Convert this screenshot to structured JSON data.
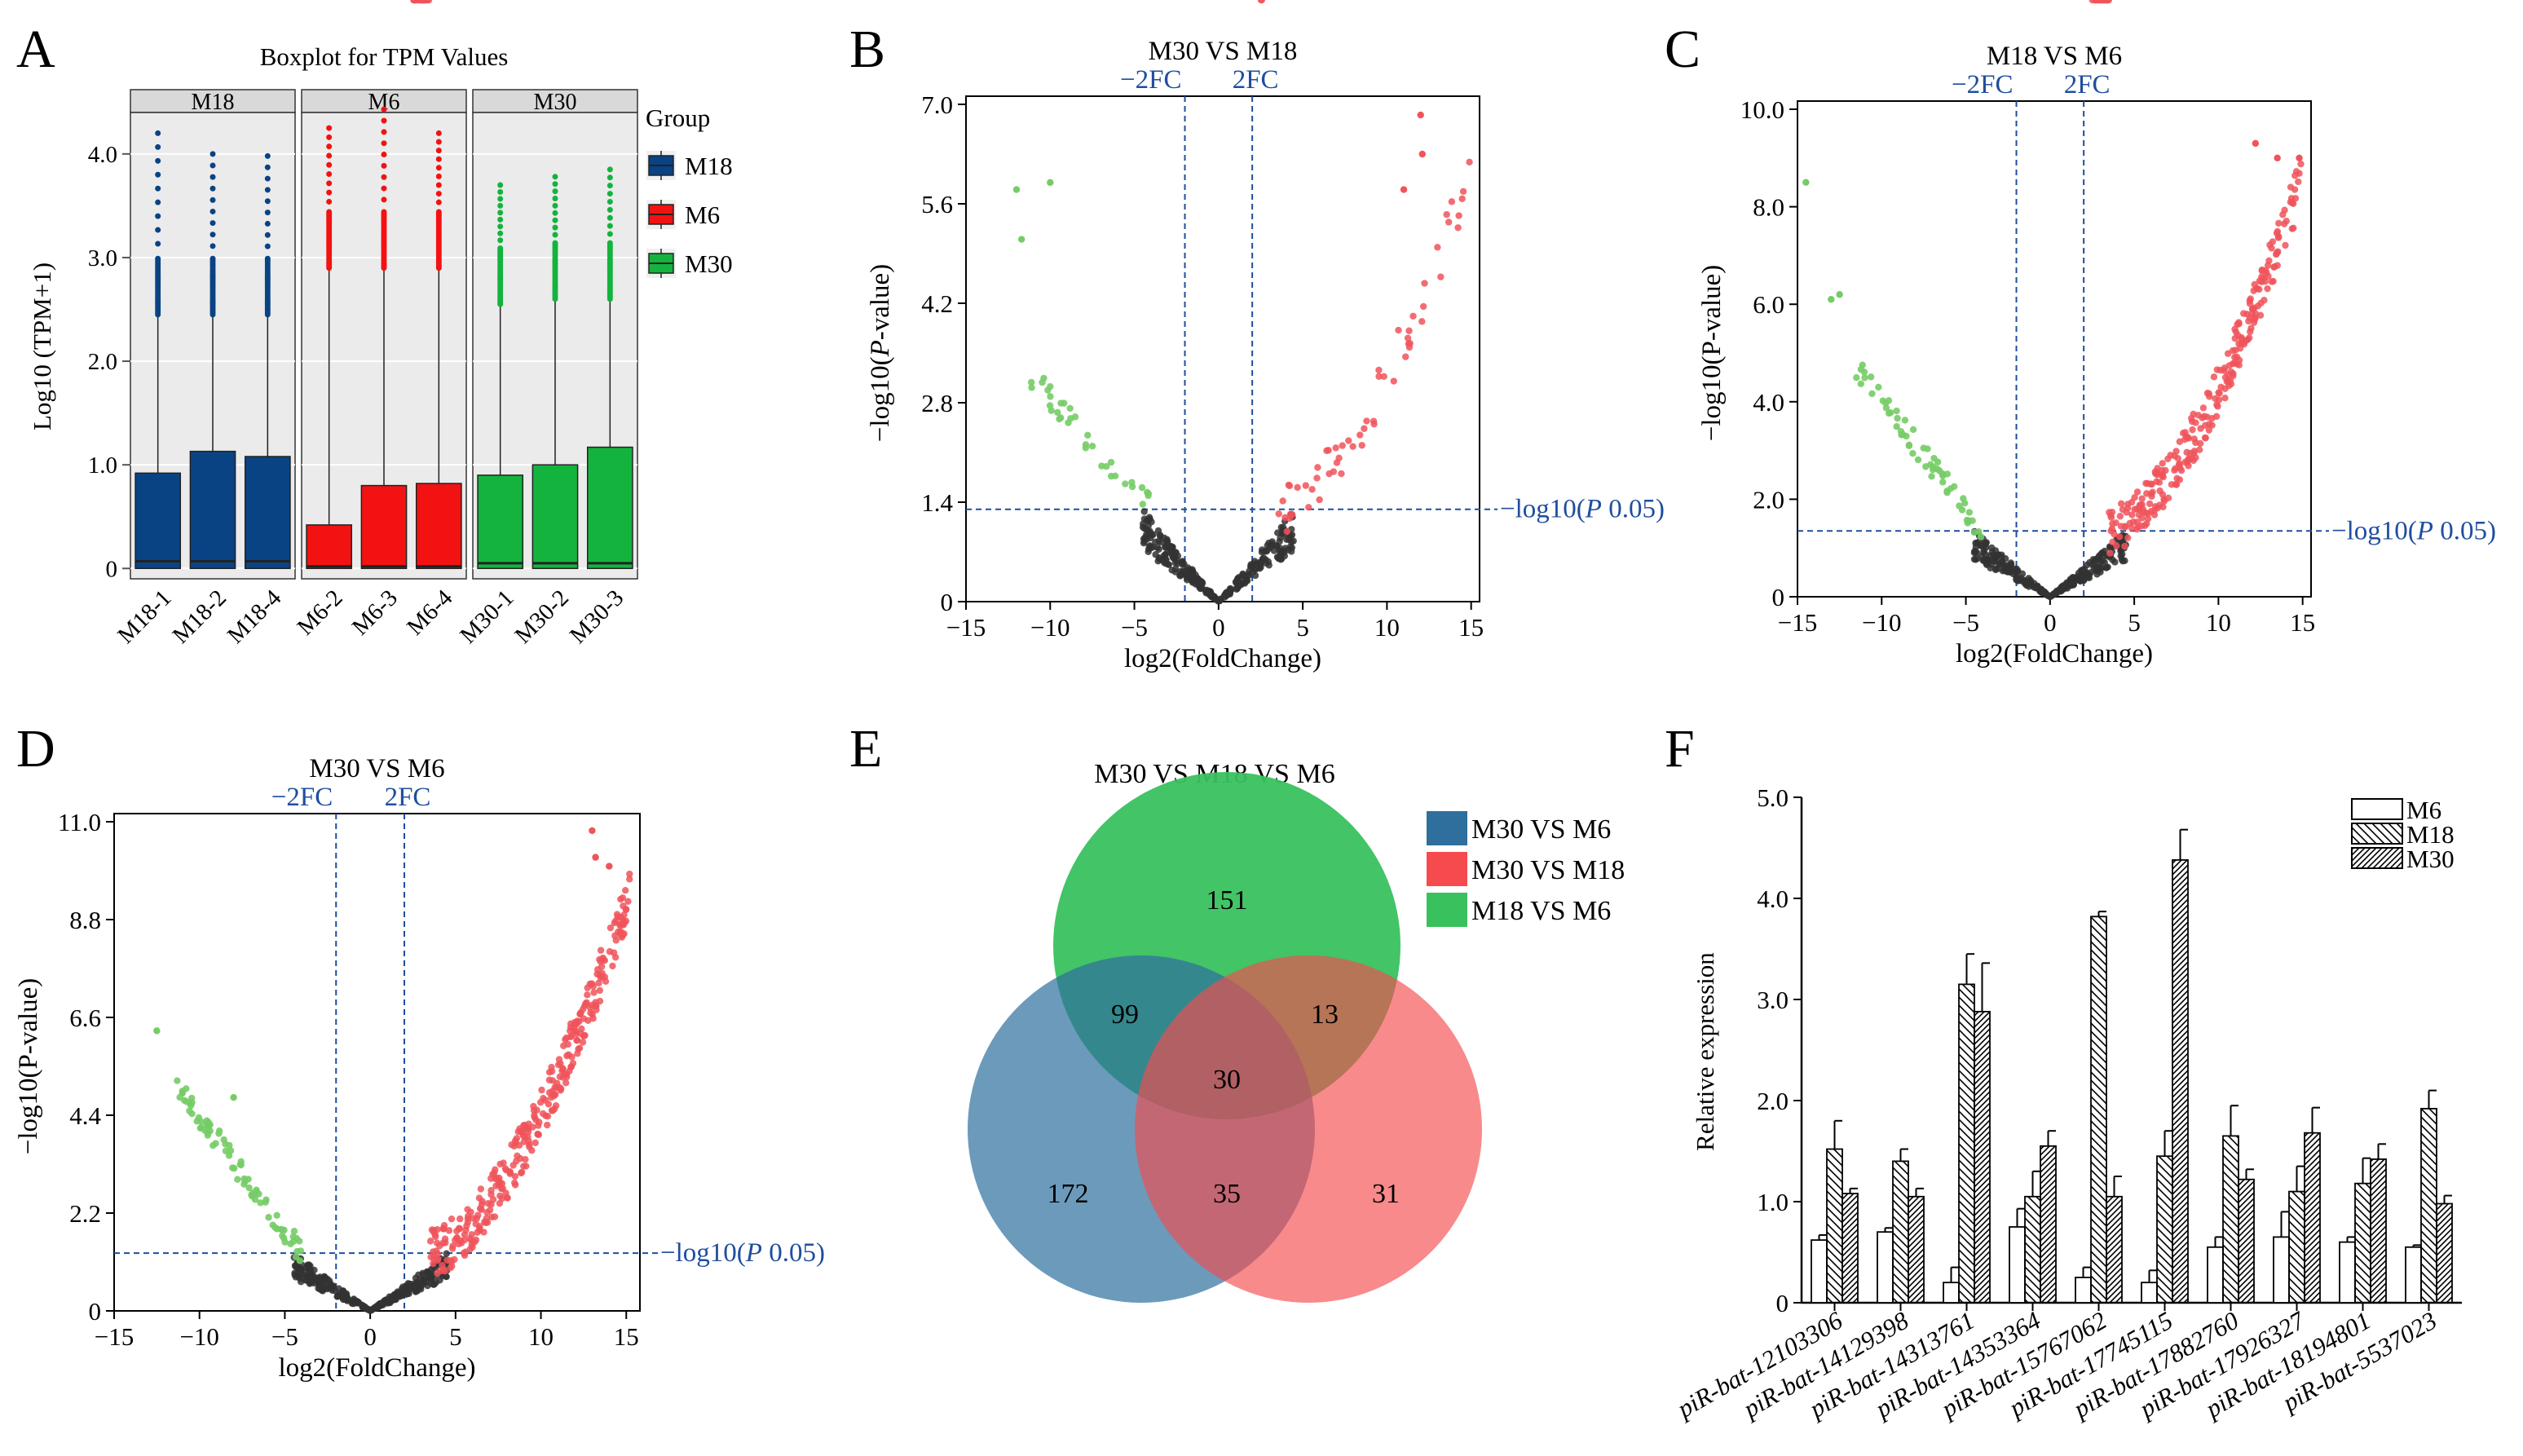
{
  "panel_labels": [
    "A",
    "B",
    "C",
    "D",
    "E",
    "F"
  ],
  "colors": {
    "m18": "#0a4384",
    "m6": "#f21212",
    "m30": "#14b33e",
    "volcano_up": "#f0545a",
    "volcano_down": "#75cc66",
    "volcano_ns": "#333333",
    "threshold": "#1f4e9e",
    "venn_blue": "#2e6f9e",
    "venn_red": "#f54b4e",
    "venn_green": "#39c15e"
  },
  "chart_data": [
    {
      "id": "A",
      "type": "boxplot",
      "title": "Boxplot for TPM Values",
      "ylabel": "Log10 (TPM+1)",
      "ylim": [
        -0.1,
        4.4
      ],
      "yticks": [
        0,
        1.0,
        2.0,
        3.0,
        4.0
      ],
      "ytick_labels": [
        "0",
        "1.0",
        "2.0",
        "3.0",
        "4.0"
      ],
      "legend": {
        "title": "Group",
        "entries": [
          "M18",
          "M6",
          "M30"
        ],
        "colors": [
          "#0a4384",
          "#f21212",
          "#14b33e"
        ]
      },
      "facets": [
        {
          "name": "M18",
          "color": "#0a4384",
          "samples": [
            {
              "name": "M18-1",
              "median": 0.07,
              "q3": 0.92,
              "whisker": 2.45,
              "outlier_max": 4.2
            },
            {
              "name": "M18-2",
              "median": 0.07,
              "q3": 1.13,
              "whisker": 2.45,
              "outlier_max": 4.0
            },
            {
              "name": "M18-4",
              "median": 0.07,
              "q3": 1.08,
              "whisker": 2.45,
              "outlier_max": 3.98
            }
          ]
        },
        {
          "name": "M6",
          "color": "#f21212",
          "samples": [
            {
              "name": "M6-2",
              "median": 0.02,
              "q3": 0.42,
              "whisker": 2.9,
              "outlier_max": 4.25
            },
            {
              "name": "M6-3",
              "median": 0.02,
              "q3": 0.8,
              "whisker": 2.9,
              "outlier_max": 4.43
            },
            {
              "name": "M6-4",
              "median": 0.02,
              "q3": 0.82,
              "whisker": 2.9,
              "outlier_max": 4.2
            }
          ]
        },
        {
          "name": "M30",
          "color": "#14b33e",
          "samples": [
            {
              "name": "M30-1",
              "median": 0.05,
              "q3": 0.9,
              "whisker": 2.55,
              "outlier_max": 3.7
            },
            {
              "name": "M30-2",
              "median": 0.05,
              "q3": 1.0,
              "whisker": 2.6,
              "outlier_max": 3.78
            },
            {
              "name": "M30-3",
              "median": 0.05,
              "q3": 1.17,
              "whisker": 2.6,
              "outlier_max": 3.85
            }
          ]
        }
      ]
    },
    {
      "id": "B",
      "type": "scatter",
      "title": "M30 VS M18",
      "xlabel": "log2(FoldChange)",
      "ylabel_pre": "−log10(",
      "ylabel_ital": "P",
      "ylabel_post": "-value)",
      "xlim": [
        -15,
        15.5
      ],
      "ylim": [
        0,
        7.0
      ],
      "xticks": [
        -15,
        -10,
        -5,
        0,
        5,
        10,
        15
      ],
      "xtick_labels": [
        "−15",
        "−10",
        "−5",
        "0",
        "5",
        "10",
        "15"
      ],
      "yticks": [
        0,
        1.4,
        2.8,
        4.2,
        5.6,
        7.0
      ],
      "ytick_labels": [
        "0",
        "1.4",
        "2.8",
        "4.2",
        "5.6",
        "7.0"
      ],
      "fc_lines": [
        -2,
        2
      ],
      "fc_labels": [
        "−2FC",
        "2FC"
      ],
      "p_line": 1.3,
      "p_label_pre": "−log10(",
      "p_label_ital": "P",
      "p_label_post": " 0.05)",
      "counts": {
        "up": 60,
        "down": 35,
        "ns": 300
      },
      "extremes": {
        "up": [
          [
            12,
            6.85
          ],
          [
            12.1,
            6.3
          ],
          [
            11,
            5.8
          ]
        ],
        "down": [
          [
            -12,
            5.8
          ],
          [
            -10,
            5.9
          ],
          [
            -11.7,
            5.1
          ]
        ]
      }
    },
    {
      "id": "C",
      "type": "scatter",
      "title": "M18 VS M6",
      "xlabel": "log2(FoldChange)",
      "ylabel_pre": "−log10(",
      "ylabel_ital": "",
      "ylabel_post": "P-value)",
      "xlim": [
        -15,
        15.5
      ],
      "ylim": [
        0,
        10.0
      ],
      "xticks": [
        -15,
        -10,
        -5,
        0,
        5,
        10,
        15
      ],
      "xtick_labels": [
        "−15",
        "−10",
        "−5",
        "0",
        "5",
        "10",
        "15"
      ],
      "yticks": [
        0,
        2,
        4,
        6,
        8,
        10
      ],
      "ytick_labels": [
        "0",
        "2.0",
        "4.0",
        "6.0",
        "8.0",
        "10.0"
      ],
      "fc_lines": [
        -2,
        2
      ],
      "fc_labels": [
        "−2FC",
        "2FC"
      ],
      "p_line": 1.35,
      "p_label_pre": "−log10(",
      "p_label_ital": "P",
      "p_label_post": " 0.05)",
      "counts": {
        "up": 300,
        "down": 60,
        "ns": 300
      },
      "extremes": {
        "up": [
          [
            12.2,
            9.3
          ],
          [
            13.5,
            9.0
          ],
          [
            14.8,
            9.0
          ]
        ],
        "down": [
          [
            -14.5,
            8.5
          ],
          [
            -12.5,
            6.2
          ],
          [
            -13,
            6.1
          ]
        ]
      }
    },
    {
      "id": "D",
      "type": "scatter",
      "title": "M30 VS M6",
      "xlabel": "log2(FoldChange)",
      "ylabel_pre": "−log10(",
      "ylabel_ital": "",
      "ylabel_post": "P-value)",
      "xlim": [
        -15,
        15.8
      ],
      "ylim": [
        0,
        11.0
      ],
      "xticks": [
        -15,
        -10,
        -5,
        0,
        5,
        10,
        15
      ],
      "xtick_labels": [
        "−15",
        "−10",
        "−5",
        "0",
        "5",
        "10",
        "15"
      ],
      "yticks": [
        0,
        2.2,
        4.4,
        6.6,
        8.8,
        11.0
      ],
      "ytick_labels": [
        "0",
        "2.2",
        "4.4",
        "6.6",
        "8.8",
        "11.0"
      ],
      "fc_lines": [
        -2,
        2
      ],
      "fc_labels": [
        "−2FC",
        "2FC"
      ],
      "p_line": 1.3,
      "p_label_pre": "−log10(",
      "p_label_ital": "P",
      "p_label_post": " 0.05)",
      "counts": {
        "up": 360,
        "down": 80,
        "ns": 300
      },
      "extremes": {
        "up": [
          [
            13,
            10.8
          ],
          [
            13.2,
            10.2
          ],
          [
            14,
            10.0
          ]
        ],
        "down": [
          [
            -12.5,
            6.3
          ],
          [
            -11,
            4.9
          ],
          [
            -8,
            4.8
          ]
        ]
      }
    },
    {
      "id": "E",
      "type": "venn",
      "title": "M30 VS M18 VS M6",
      "sets": [
        "M30 VS M6",
        "M30 VS M18",
        "M18 VS M6"
      ],
      "regions": {
        "only_m30_m6": 172,
        "only_m30_m18": 31,
        "only_m18_m6": 151,
        "m18m6_m30m6": 99,
        "m18m6_m30m18": 13,
        "m30m6_m30m18": 35,
        "all": 30
      }
    },
    {
      "id": "F",
      "type": "bar",
      "ylabel": "Relative expression",
      "ylim": [
        0,
        5.0
      ],
      "yticks": [
        0,
        1.0,
        2.0,
        3.0,
        4.0,
        5.0
      ],
      "ytick_labels": [
        "0",
        "1.0",
        "2.0",
        "3.0",
        "4.0",
        "5.0"
      ],
      "categories": [
        "piR-bat-12103306",
        "piR-bat-14129398",
        "piR-bat-14313761",
        "piR-bat-14353364",
        "piR-bat-15767062",
        "piR-bat-17745115",
        "piR-bat-17882760",
        "piR-bat-17926327",
        "piR-bat-18194801",
        "piR-bat-5537023"
      ],
      "series": [
        {
          "name": "M6",
          "values": [
            0.62,
            0.7,
            0.2,
            0.75,
            0.25,
            0.2,
            0.55,
            0.65,
            0.6,
            0.55
          ],
          "errors": [
            0.05,
            0.04,
            0.15,
            0.18,
            0.1,
            0.12,
            0.1,
            0.25,
            0.05,
            0.02
          ]
        },
        {
          "name": "M18",
          "values": [
            1.52,
            1.4,
            3.15,
            1.05,
            3.82,
            1.45,
            1.65,
            1.1,
            1.18,
            1.92
          ],
          "errors": [
            0.28,
            0.12,
            0.3,
            0.25,
            0.05,
            0.25,
            0.3,
            0.25,
            0.25,
            0.18
          ]
        },
        {
          "name": "M30",
          "values": [
            1.08,
            1.05,
            2.88,
            1.55,
            1.05,
            4.38,
            1.22,
            1.68,
            1.42,
            0.98
          ],
          "errors": [
            0.05,
            0.08,
            0.48,
            0.15,
            0.2,
            0.3,
            0.1,
            0.25,
            0.15,
            0.08
          ]
        }
      ]
    }
  ]
}
